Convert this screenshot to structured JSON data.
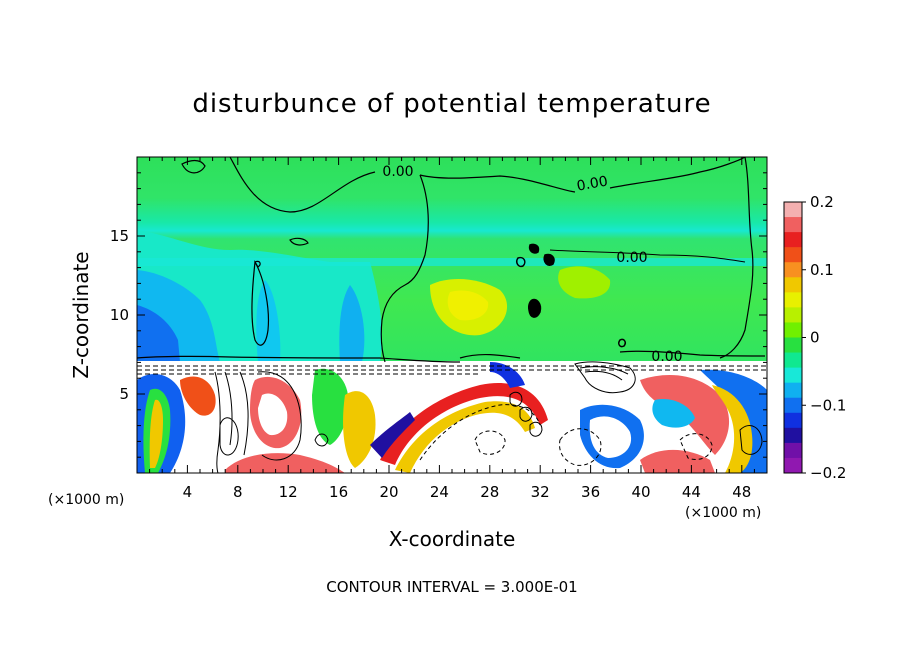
{
  "chart_data": {
    "type": "heatmap",
    "title": "disturbunce of potential temperature",
    "xlabel": "X-coordinate",
    "ylabel": "Z-coordinate",
    "x_unit": "(×1000 m)",
    "y_unit": "(×1000 m)",
    "xlim": [
      0,
      50
    ],
    "ylim": [
      0,
      20
    ],
    "x_ticks": [
      4,
      8,
      12,
      16,
      20,
      24,
      28,
      32,
      36,
      40,
      44,
      48
    ],
    "y_ticks": [
      5,
      10,
      15
    ],
    "colorbar": {
      "min": -0.2,
      "max": 0.2,
      "ticks": [
        "0.2",
        "0.1",
        "0",
        "−0.1",
        "−0.2"
      ],
      "colors": [
        "#f4b0b0",
        "#f06060",
        "#e82020",
        "#f05018",
        "#f89020",
        "#f0c800",
        "#e8f000",
        "#b8f000",
        "#70f000",
        "#28e040",
        "#10e890",
        "#18e8d8",
        "#10b0f0",
        "#1070f0",
        "#1030e0",
        "#2010a0",
        "#7010a8",
        "#9018b0"
      ]
    },
    "contour_labels": [
      "0.00",
      "0.00",
      "0.00",
      "0.00"
    ],
    "contour_interval": "CONTOUR INTERVAL = 3.000E-01"
  }
}
